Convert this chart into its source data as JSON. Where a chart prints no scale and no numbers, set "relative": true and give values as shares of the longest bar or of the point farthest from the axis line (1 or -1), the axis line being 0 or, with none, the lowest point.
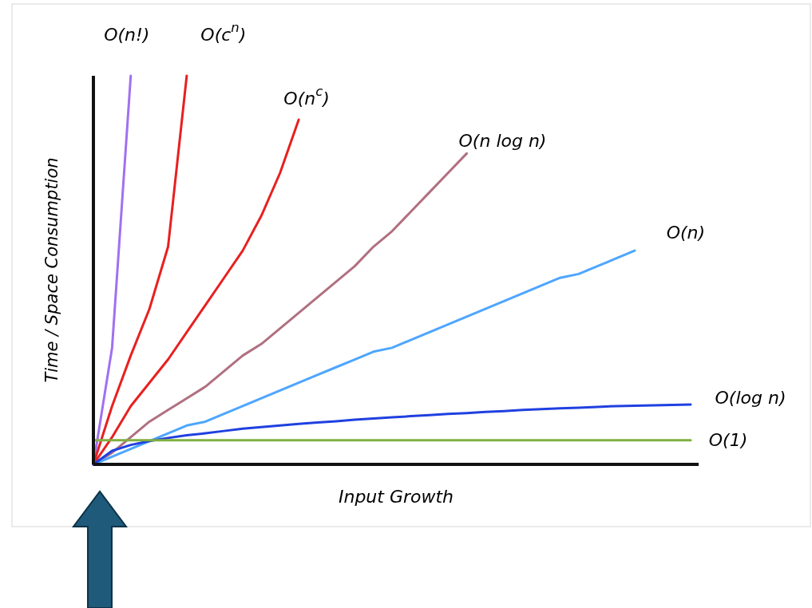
{
  "chart_data": {
    "type": "line",
    "relative": true,
    "xlabel": "Input Growth",
    "ylabel": "Time / Space Consumption",
    "tick_labels": false,
    "legend": false,
    "marker": "none",
    "line_style": "solid",
    "categories": [
      null,
      null,
      null,
      null,
      null,
      null,
      null,
      null,
      null,
      null,
      null,
      null,
      null,
      null,
      null,
      null,
      null,
      null,
      null,
      null,
      null,
      null,
      null,
      null,
      null,
      null,
      null,
      null,
      null,
      null,
      null,
      null,
      null
    ],
    "series": [
      {
        "name": "O(n!)",
        "color": "#a070f0",
        "values": [
          0,
          0.3,
          1,
          null,
          null,
          null,
          null,
          null,
          null,
          null,
          null,
          null,
          null,
          null,
          null,
          null,
          null,
          null,
          null,
          null,
          null,
          null,
          null,
          null,
          null,
          null,
          null,
          null,
          null,
          null,
          null,
          null,
          null
        ]
      },
      {
        "name": "O(c$^{n}$)",
        "color": "#e82020",
        "values": [
          0,
          0.15,
          0.28,
          0.4,
          0.56,
          1,
          null,
          null,
          null,
          null,
          null,
          null,
          null,
          null,
          null,
          null,
          null,
          null,
          null,
          null,
          null,
          null,
          null,
          null,
          null,
          null,
          null,
          null,
          null,
          null,
          null,
          null,
          null
        ]
      },
      {
        "name": "O(n$^{c}$)",
        "color": "#e82020",
        "values": [
          0,
          0.07,
          0.15,
          0.21,
          0.27,
          0.34,
          0.41,
          0.48,
          0.55,
          0.64,
          0.75,
          0.887,
          null,
          null,
          null,
          null,
          null,
          null,
          null,
          null,
          null,
          null,
          null,
          null,
          null,
          null,
          null,
          null,
          null,
          null,
          null,
          null,
          null
        ]
      },
      {
        "name": "O(n log n)",
        "color": "#b07080",
        "values": [
          0,
          0.03,
          0.07,
          0.11,
          0.14,
          0.17,
          0.2,
          0.24,
          0.28,
          0.31,
          0.35,
          0.39,
          0.43,
          0.47,
          0.51,
          0.56,
          0.6,
          0.65,
          0.7,
          0.75,
          0.8,
          null,
          null,
          null,
          null,
          null,
          null,
          null,
          null,
          null,
          null,
          null,
          null
        ]
      },
      {
        "name": "O(n)",
        "color": "#4da6ff",
        "values": [
          0,
          0.02,
          0.04,
          0.06,
          0.08,
          0.1,
          0.11,
          0.13,
          0.15,
          0.17,
          0.19,
          0.21,
          0.23,
          0.25,
          0.27,
          0.29,
          0.3,
          0.32,
          0.34,
          0.36,
          0.38,
          0.4,
          0.42,
          0.44,
          0.46,
          0.48,
          0.49,
          0.51,
          0.53,
          0.55,
          null,
          null,
          null
        ]
      },
      {
        "name": "O(log n)",
        "color": "#2040e0",
        "values": [
          0,
          0.035,
          0.05,
          0.06,
          0.068,
          0.075,
          0.08,
          0.086,
          0.092,
          0.096,
          0.1,
          0.104,
          0.108,
          0.111,
          0.115,
          0.118,
          0.121,
          0.124,
          0.127,
          0.13,
          0.132,
          0.135,
          0.137,
          0.14,
          0.142,
          0.144,
          0.146,
          0.148,
          0.15,
          0.151,
          0.152,
          0.153,
          0.154
        ]
      },
      {
        "name": "O(1)",
        "color": "#80b040",
        "values": [
          0.062,
          0.062,
          0.062,
          0.062,
          0.062,
          0.062,
          0.062,
          0.062,
          0.062,
          0.062,
          0.062,
          0.062,
          0.062,
          0.062,
          0.062,
          0.062,
          0.062,
          0.062,
          0.062,
          0.062,
          0.062,
          0.062,
          0.062,
          0.062,
          0.062,
          0.062,
          0.062,
          0.062,
          0.062,
          0.062,
          0.062,
          0.062,
          0.062
        ]
      }
    ]
  }
}
